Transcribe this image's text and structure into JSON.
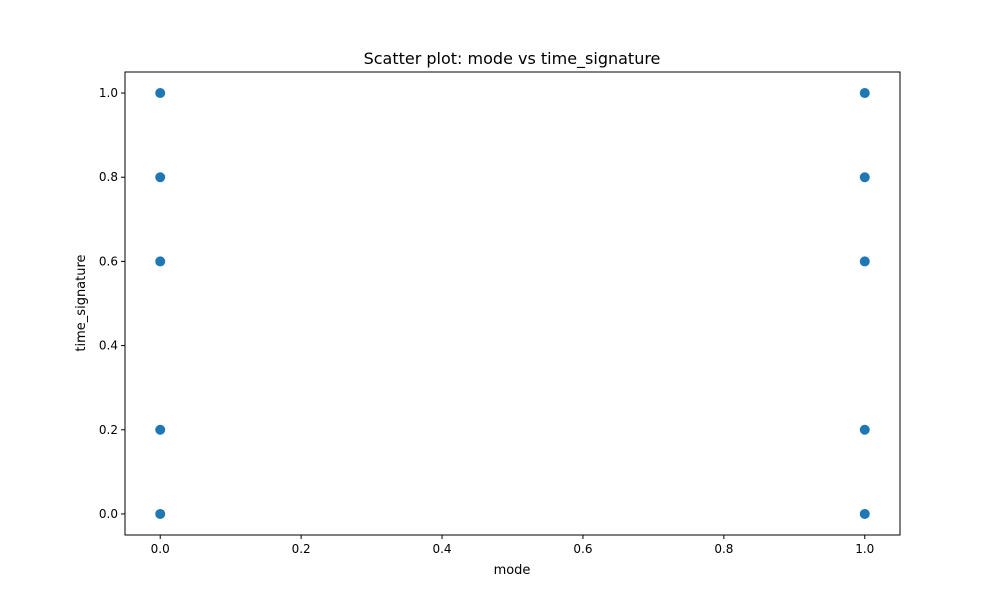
{
  "chart_data": {
    "type": "scatter",
    "title": "Scatter plot: mode vs time_signature",
    "xlabel": "mode",
    "ylabel": "time_signature",
    "xlim": [
      -0.05,
      1.05
    ],
    "ylim": [
      -0.05,
      1.05
    ],
    "xticks": [
      0.0,
      0.2,
      0.4,
      0.6,
      0.8,
      1.0
    ],
    "xtick_labels": [
      "0.0",
      "0.2",
      "0.4",
      "0.6",
      "0.8",
      "1.0"
    ],
    "yticks": [
      0.0,
      0.2,
      0.4,
      0.6,
      0.8,
      1.0
    ],
    "ytick_labels": [
      "0.0",
      "0.2",
      "0.4",
      "0.6",
      "0.8",
      "1.0"
    ],
    "grid": false,
    "marker_color": "#1f77b4",
    "points": [
      {
        "x": 0,
        "y": 0.0
      },
      {
        "x": 0,
        "y": 0.2
      },
      {
        "x": 0,
        "y": 0.6
      },
      {
        "x": 0,
        "y": 0.8
      },
      {
        "x": 0,
        "y": 1.0
      },
      {
        "x": 1,
        "y": 0.0
      },
      {
        "x": 1,
        "y": 0.2
      },
      {
        "x": 1,
        "y": 0.6
      },
      {
        "x": 1,
        "y": 0.8
      },
      {
        "x": 1,
        "y": 1.0
      }
    ]
  }
}
